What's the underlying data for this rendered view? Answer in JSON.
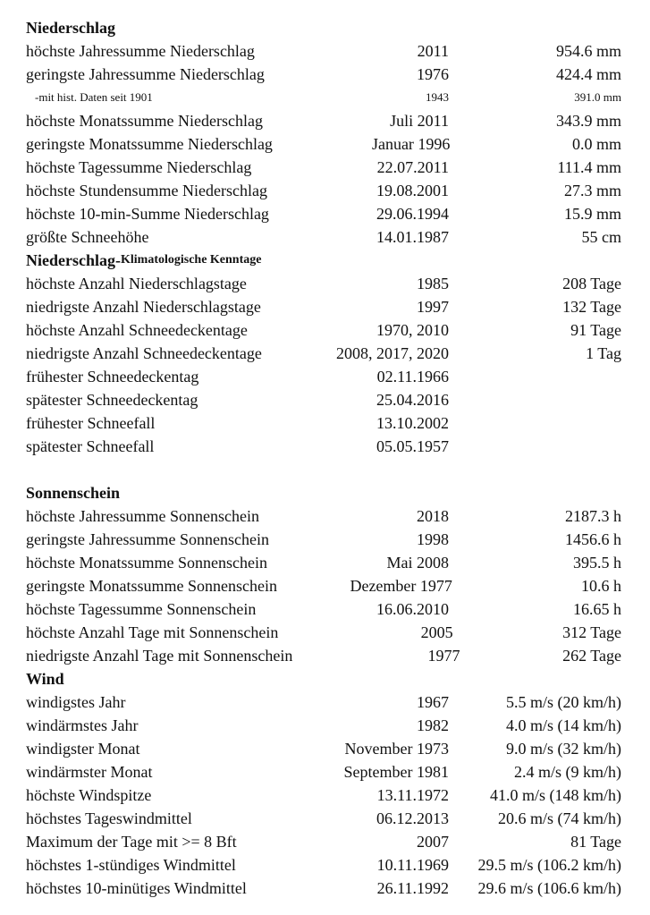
{
  "sections": [
    {
      "title": "Niederschlag",
      "rows": [
        [
          "höchste Jahressumme Niederschlag",
          "2011",
          "954.6 mm"
        ],
        [
          "geringste Jahressumme Niederschlag",
          "1976",
          "424.4 mm"
        ],
        [
          "-mit hist. Daten seit 1901",
          "1943",
          "391.0 mm",
          "small"
        ],
        [
          "höchste Monatssumme Niederschlag",
          "Juli 2011",
          "343.9 mm"
        ],
        [
          "geringste Monatssumme Niederschlag",
          "Januar 1996",
          "0.0 mm"
        ],
        [
          "höchste Tagessumme Niederschlag",
          "22.07.2011",
          "111.4 mm"
        ],
        [
          "höchste Stundensumme Niederschlag",
          "19.08.2001",
          "27.3 mm"
        ],
        [
          "höchste 10-min-Summe Niederschlag",
          "29.06.1994",
          "15.9 mm"
        ],
        [
          "größte Schneehöhe",
          "14.01.1987",
          "55 cm"
        ]
      ]
    },
    {
      "title": "Niederschlag-",
      "subtitle": "Klimatologische Kenntage",
      "rows": [
        [
          "höchste Anzahl Niederschlagstage",
          "1985",
          "208 Tage"
        ],
        [
          "niedrigste Anzahl Niederschlagstage",
          "1997",
          "132 Tage"
        ],
        [
          "höchste Anzahl Schneedeckentage",
          "1970, 2010",
          "91 Tage"
        ],
        [
          "niedrigste Anzahl Schneedeckentage",
          "2008, 2017, 2020",
          "1 Tag"
        ],
        [
          "frühester Schneedeckentag",
          "02.11.1966",
          ""
        ],
        [
          "spätester Schneedeckentag",
          "25.04.2016",
          ""
        ],
        [
          "frühester Schneefall",
          "13.10.2002",
          ""
        ],
        [
          "spätester Schneefall",
          "05.05.1957",
          ""
        ]
      ],
      "gap_after": true
    },
    {
      "title": "Sonnenschein",
      "rows": [
        [
          "höchste Jahressumme Sonnenschein",
          "2018",
          "2187.3 h"
        ],
        [
          "geringste Jahressumme Sonnenschein",
          "1998",
          "1456.6 h"
        ],
        [
          "höchste Monatssumme Sonnenschein",
          "Mai 2008",
          "395.5 h"
        ],
        [
          "geringste Monatssumme Sonnenschein",
          "Dezember 1977",
          "10.6 h"
        ],
        [
          "höchste Tagessumme Sonnenschein",
          "16.06.2010",
          "16.65 h"
        ],
        [
          "höchste Anzahl Tage mit Sonnenschein",
          "2005",
          "312 Tage"
        ],
        [
          "niedrigste Anzahl Tage mit Sonnenschein",
          "1977",
          "262 Tage"
        ]
      ]
    },
    {
      "title": "Wind",
      "rows": [
        [
          "windigstes Jahr",
          "1967",
          "5.5 m/s (20 km/h)"
        ],
        [
          "windärmstes Jahr",
          "1982",
          "4.0 m/s (14 km/h)"
        ],
        [
          "windigster Monat",
          "November 1973",
          "9.0 m/s (32 km/h)"
        ],
        [
          "windärmster Monat",
          "September 1981",
          "2.4 m/s (9 km/h)"
        ],
        [
          "höchste Windspitze",
          "13.11.1972",
          "41.0 m/s (148 km/h)"
        ],
        [
          "höchstes Tageswindmittel",
          "06.12.2013",
          "20.6 m/s (74 km/h)"
        ],
        [
          "Maximum der Tage mit >= 8 Bft",
          "2007",
          "81 Tage"
        ],
        [
          "höchstes 1-stündiges Windmittel",
          "10.11.1969",
          "29.5 m/s (106.2 km/h)"
        ],
        [
          "höchstes 10-minütiges Windmittel",
          "26.11.1992",
          "29.6 m/s (106.6 km/h)"
        ]
      ]
    }
  ]
}
